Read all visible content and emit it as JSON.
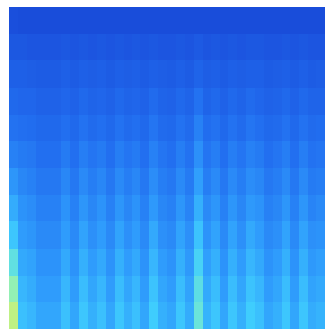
{
  "chart_data": {
    "type": "heatmap",
    "tick_labels": false,
    "zlim": [
      0,
      1
    ],
    "cells": [
      [
        0.85,
        0.56,
        0.53,
        0.48,
        0.48,
        0.48,
        0.56,
        0.48,
        0.58,
        0.51,
        0.56,
        0.48,
        0.58,
        0.51,
        0.56,
        0.48,
        0.6,
        0.51,
        0.48,
        0.58,
        0.5,
        0.7,
        0.52,
        0.58,
        0.48,
        0.58,
        0.51,
        0.6,
        0.56,
        0.48,
        0.51,
        0.58,
        0.48,
        0.58,
        0.5,
        0.52
      ],
      [
        0.78,
        0.53,
        0.5,
        0.45,
        0.45,
        0.45,
        0.53,
        0.45,
        0.55,
        0.48,
        0.53,
        0.45,
        0.55,
        0.48,
        0.53,
        0.45,
        0.57,
        0.48,
        0.45,
        0.55,
        0.47,
        0.67,
        0.49,
        0.55,
        0.45,
        0.55,
        0.48,
        0.57,
        0.53,
        0.45,
        0.48,
        0.55,
        0.45,
        0.55,
        0.47,
        0.49
      ],
      [
        0.68,
        0.49,
        0.47,
        0.42,
        0.42,
        0.42,
        0.49,
        0.42,
        0.51,
        0.45,
        0.49,
        0.42,
        0.51,
        0.45,
        0.49,
        0.42,
        0.53,
        0.45,
        0.42,
        0.51,
        0.44,
        0.62,
        0.46,
        0.51,
        0.42,
        0.51,
        0.45,
        0.53,
        0.49,
        0.42,
        0.45,
        0.51,
        0.42,
        0.51,
        0.44,
        0.46
      ],
      [
        0.58,
        0.45,
        0.43,
        0.39,
        0.39,
        0.39,
        0.45,
        0.39,
        0.47,
        0.41,
        0.45,
        0.39,
        0.47,
        0.41,
        0.45,
        0.39,
        0.49,
        0.41,
        0.39,
        0.47,
        0.41,
        0.57,
        0.42,
        0.47,
        0.39,
        0.47,
        0.41,
        0.49,
        0.45,
        0.39,
        0.41,
        0.47,
        0.39,
        0.47,
        0.41,
        0.42
      ],
      [
        0.5,
        0.42,
        0.4,
        0.36,
        0.36,
        0.36,
        0.42,
        0.36,
        0.43,
        0.38,
        0.42,
        0.36,
        0.43,
        0.38,
        0.42,
        0.36,
        0.44,
        0.38,
        0.36,
        0.43,
        0.37,
        0.51,
        0.39,
        0.43,
        0.36,
        0.43,
        0.38,
        0.44,
        0.42,
        0.36,
        0.38,
        0.43,
        0.36,
        0.43,
        0.37,
        0.39
      ],
      [
        0.43,
        0.38,
        0.36,
        0.33,
        0.33,
        0.33,
        0.38,
        0.33,
        0.39,
        0.35,
        0.38,
        0.33,
        0.39,
        0.35,
        0.38,
        0.33,
        0.4,
        0.35,
        0.33,
        0.39,
        0.34,
        0.46,
        0.35,
        0.39,
        0.33,
        0.39,
        0.35,
        0.4,
        0.38,
        0.33,
        0.35,
        0.39,
        0.33,
        0.39,
        0.34,
        0.35
      ],
      [
        0.36,
        0.34,
        0.33,
        0.3,
        0.3,
        0.3,
        0.34,
        0.3,
        0.35,
        0.32,
        0.34,
        0.3,
        0.35,
        0.32,
        0.34,
        0.3,
        0.36,
        0.32,
        0.3,
        0.35,
        0.31,
        0.41,
        0.32,
        0.35,
        0.3,
        0.35,
        0.32,
        0.36,
        0.34,
        0.3,
        0.32,
        0.35,
        0.3,
        0.35,
        0.31,
        0.32
      ],
      [
        0.31,
        0.3,
        0.29,
        0.27,
        0.27,
        0.27,
        0.3,
        0.27,
        0.31,
        0.28,
        0.3,
        0.27,
        0.31,
        0.28,
        0.3,
        0.27,
        0.32,
        0.28,
        0.27,
        0.31,
        0.28,
        0.36,
        0.29,
        0.31,
        0.27,
        0.31,
        0.28,
        0.32,
        0.3,
        0.27,
        0.28,
        0.31,
        0.27,
        0.31,
        0.28,
        0.29
      ],
      [
        0.27,
        0.26,
        0.26,
        0.24,
        0.24,
        0.24,
        0.26,
        0.24,
        0.27,
        0.25,
        0.26,
        0.24,
        0.27,
        0.25,
        0.26,
        0.24,
        0.28,
        0.25,
        0.24,
        0.27,
        0.25,
        0.31,
        0.25,
        0.27,
        0.24,
        0.27,
        0.25,
        0.28,
        0.26,
        0.24,
        0.25,
        0.27,
        0.24,
        0.27,
        0.25,
        0.25
      ],
      [
        0.23,
        0.23,
        0.22,
        0.21,
        0.21,
        0.21,
        0.23,
        0.21,
        0.23,
        0.22,
        0.23,
        0.21,
        0.23,
        0.22,
        0.23,
        0.21,
        0.23,
        0.22,
        0.21,
        0.23,
        0.21,
        0.25,
        0.22,
        0.23,
        0.21,
        0.23,
        0.22,
        0.23,
        0.23,
        0.21,
        0.22,
        0.23,
        0.21,
        0.23,
        0.21,
        0.22
      ],
      [
        0.19,
        0.19,
        0.18,
        0.18,
        0.18,
        0.18,
        0.19,
        0.18,
        0.19,
        0.18,
        0.19,
        0.18,
        0.19,
        0.18,
        0.19,
        0.18,
        0.19,
        0.18,
        0.18,
        0.19,
        0.18,
        0.2,
        0.18,
        0.19,
        0.18,
        0.19,
        0.18,
        0.19,
        0.19,
        0.18,
        0.18,
        0.19,
        0.18,
        0.19,
        0.18,
        0.18
      ],
      [
        0.15,
        0.14,
        0.14,
        0.14,
        0.14,
        0.14,
        0.14,
        0.14,
        0.14,
        0.14,
        0.14,
        0.14,
        0.14,
        0.14,
        0.14,
        0.14,
        0.14,
        0.14,
        0.14,
        0.14,
        0.14,
        0.14,
        0.14,
        0.14,
        0.14,
        0.14,
        0.14,
        0.14,
        0.14,
        0.14,
        0.14,
        0.14,
        0.14,
        0.14,
        0.14,
        0.14
      ]
    ]
  }
}
